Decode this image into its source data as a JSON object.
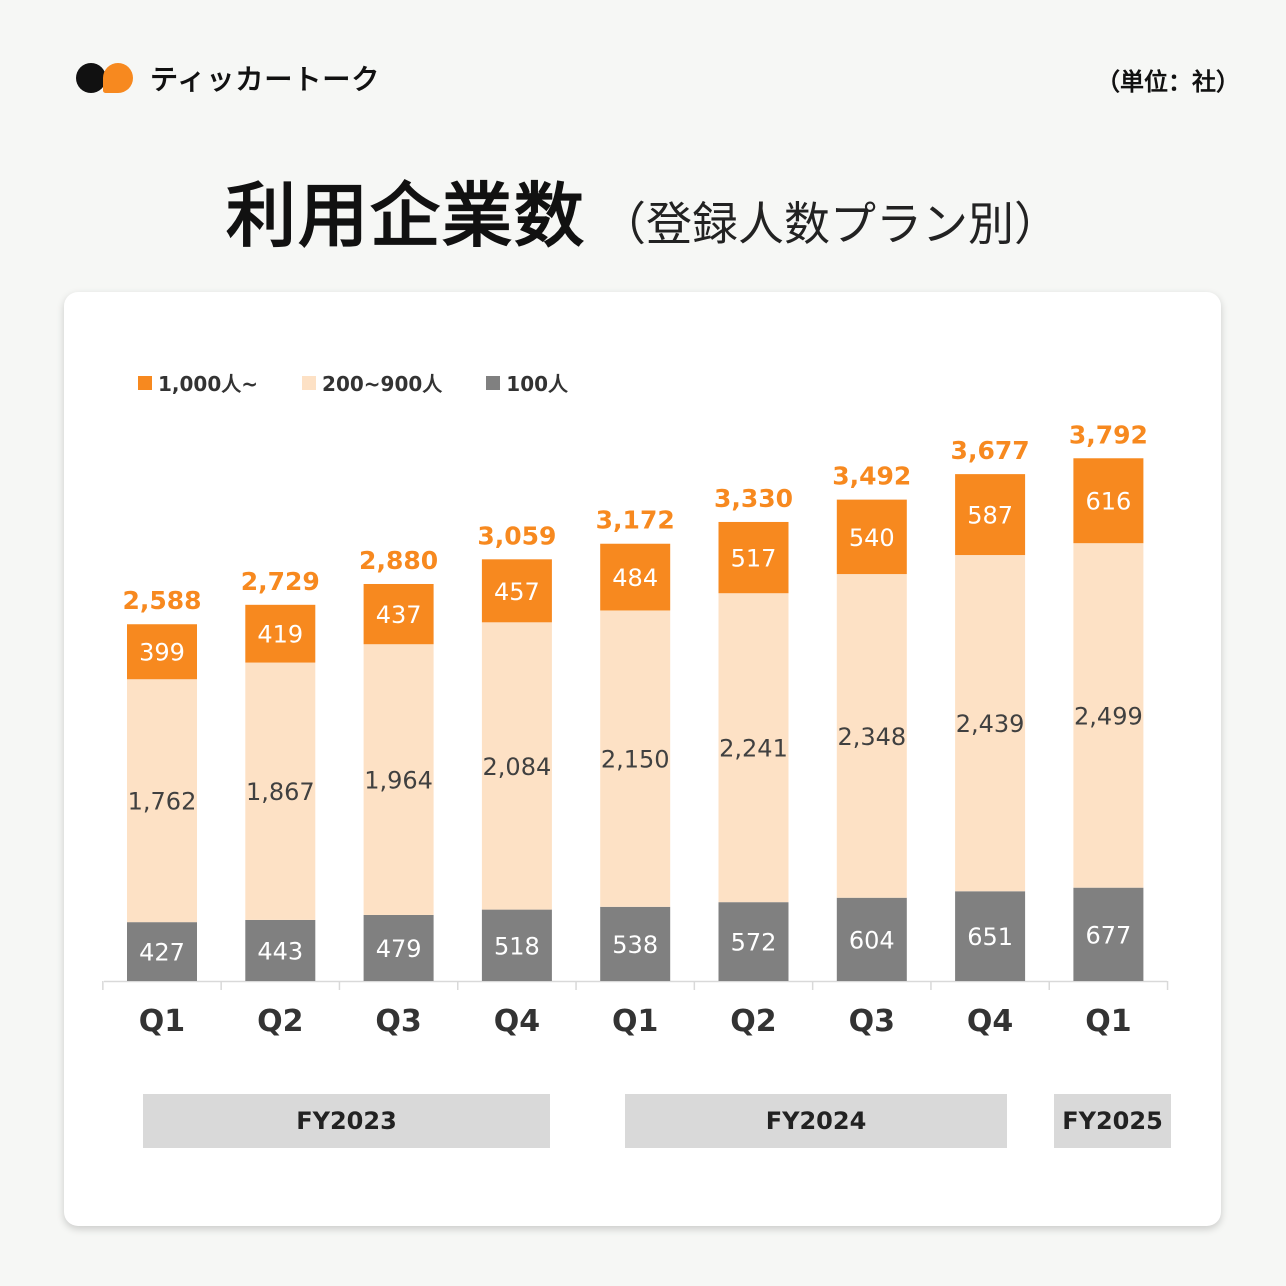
{
  "brand": {
    "name": "ティッカートーク"
  },
  "unit_label": "（単位：社）",
  "title": {
    "main": "利用企業数",
    "sub": "（登録人数プラン別）"
  },
  "colors": {
    "large": "#f7891f",
    "mid": "#fde1c5",
    "small": "#808080",
    "total": "#f7891f",
    "accent": "#f7891f"
  },
  "chart_data": {
    "type": "bar",
    "stacked": true,
    "categories": [
      "Q1",
      "Q2",
      "Q3",
      "Q4",
      "Q1",
      "Q2",
      "Q3",
      "Q4",
      "Q1"
    ],
    "series": [
      {
        "name": "100人",
        "values": [
          427,
          443,
          479,
          518,
          538,
          572,
          604,
          651,
          677
        ]
      },
      {
        "name": "200~900人",
        "values": [
          1762,
          1867,
          1964,
          2084,
          2150,
          2241,
          2348,
          2439,
          2499
        ]
      },
      {
        "name": "1,000人~",
        "values": [
          399,
          419,
          437,
          457,
          484,
          517,
          540,
          587,
          616
        ]
      }
    ],
    "totals": [
      2588,
      2729,
      2880,
      3059,
      3172,
      3330,
      3492,
      3677,
      3792
    ],
    "groups": [
      {
        "label": "FY2023",
        "from": 0,
        "to": 3
      },
      {
        "label": "FY2024",
        "from": 4,
        "to": 7
      },
      {
        "label": "FY2025",
        "from": 8,
        "to": 8
      }
    ],
    "legend": [
      "1,000人~",
      "200~900人",
      "100人"
    ],
    "legend_position": "top-left",
    "grid": false
  }
}
